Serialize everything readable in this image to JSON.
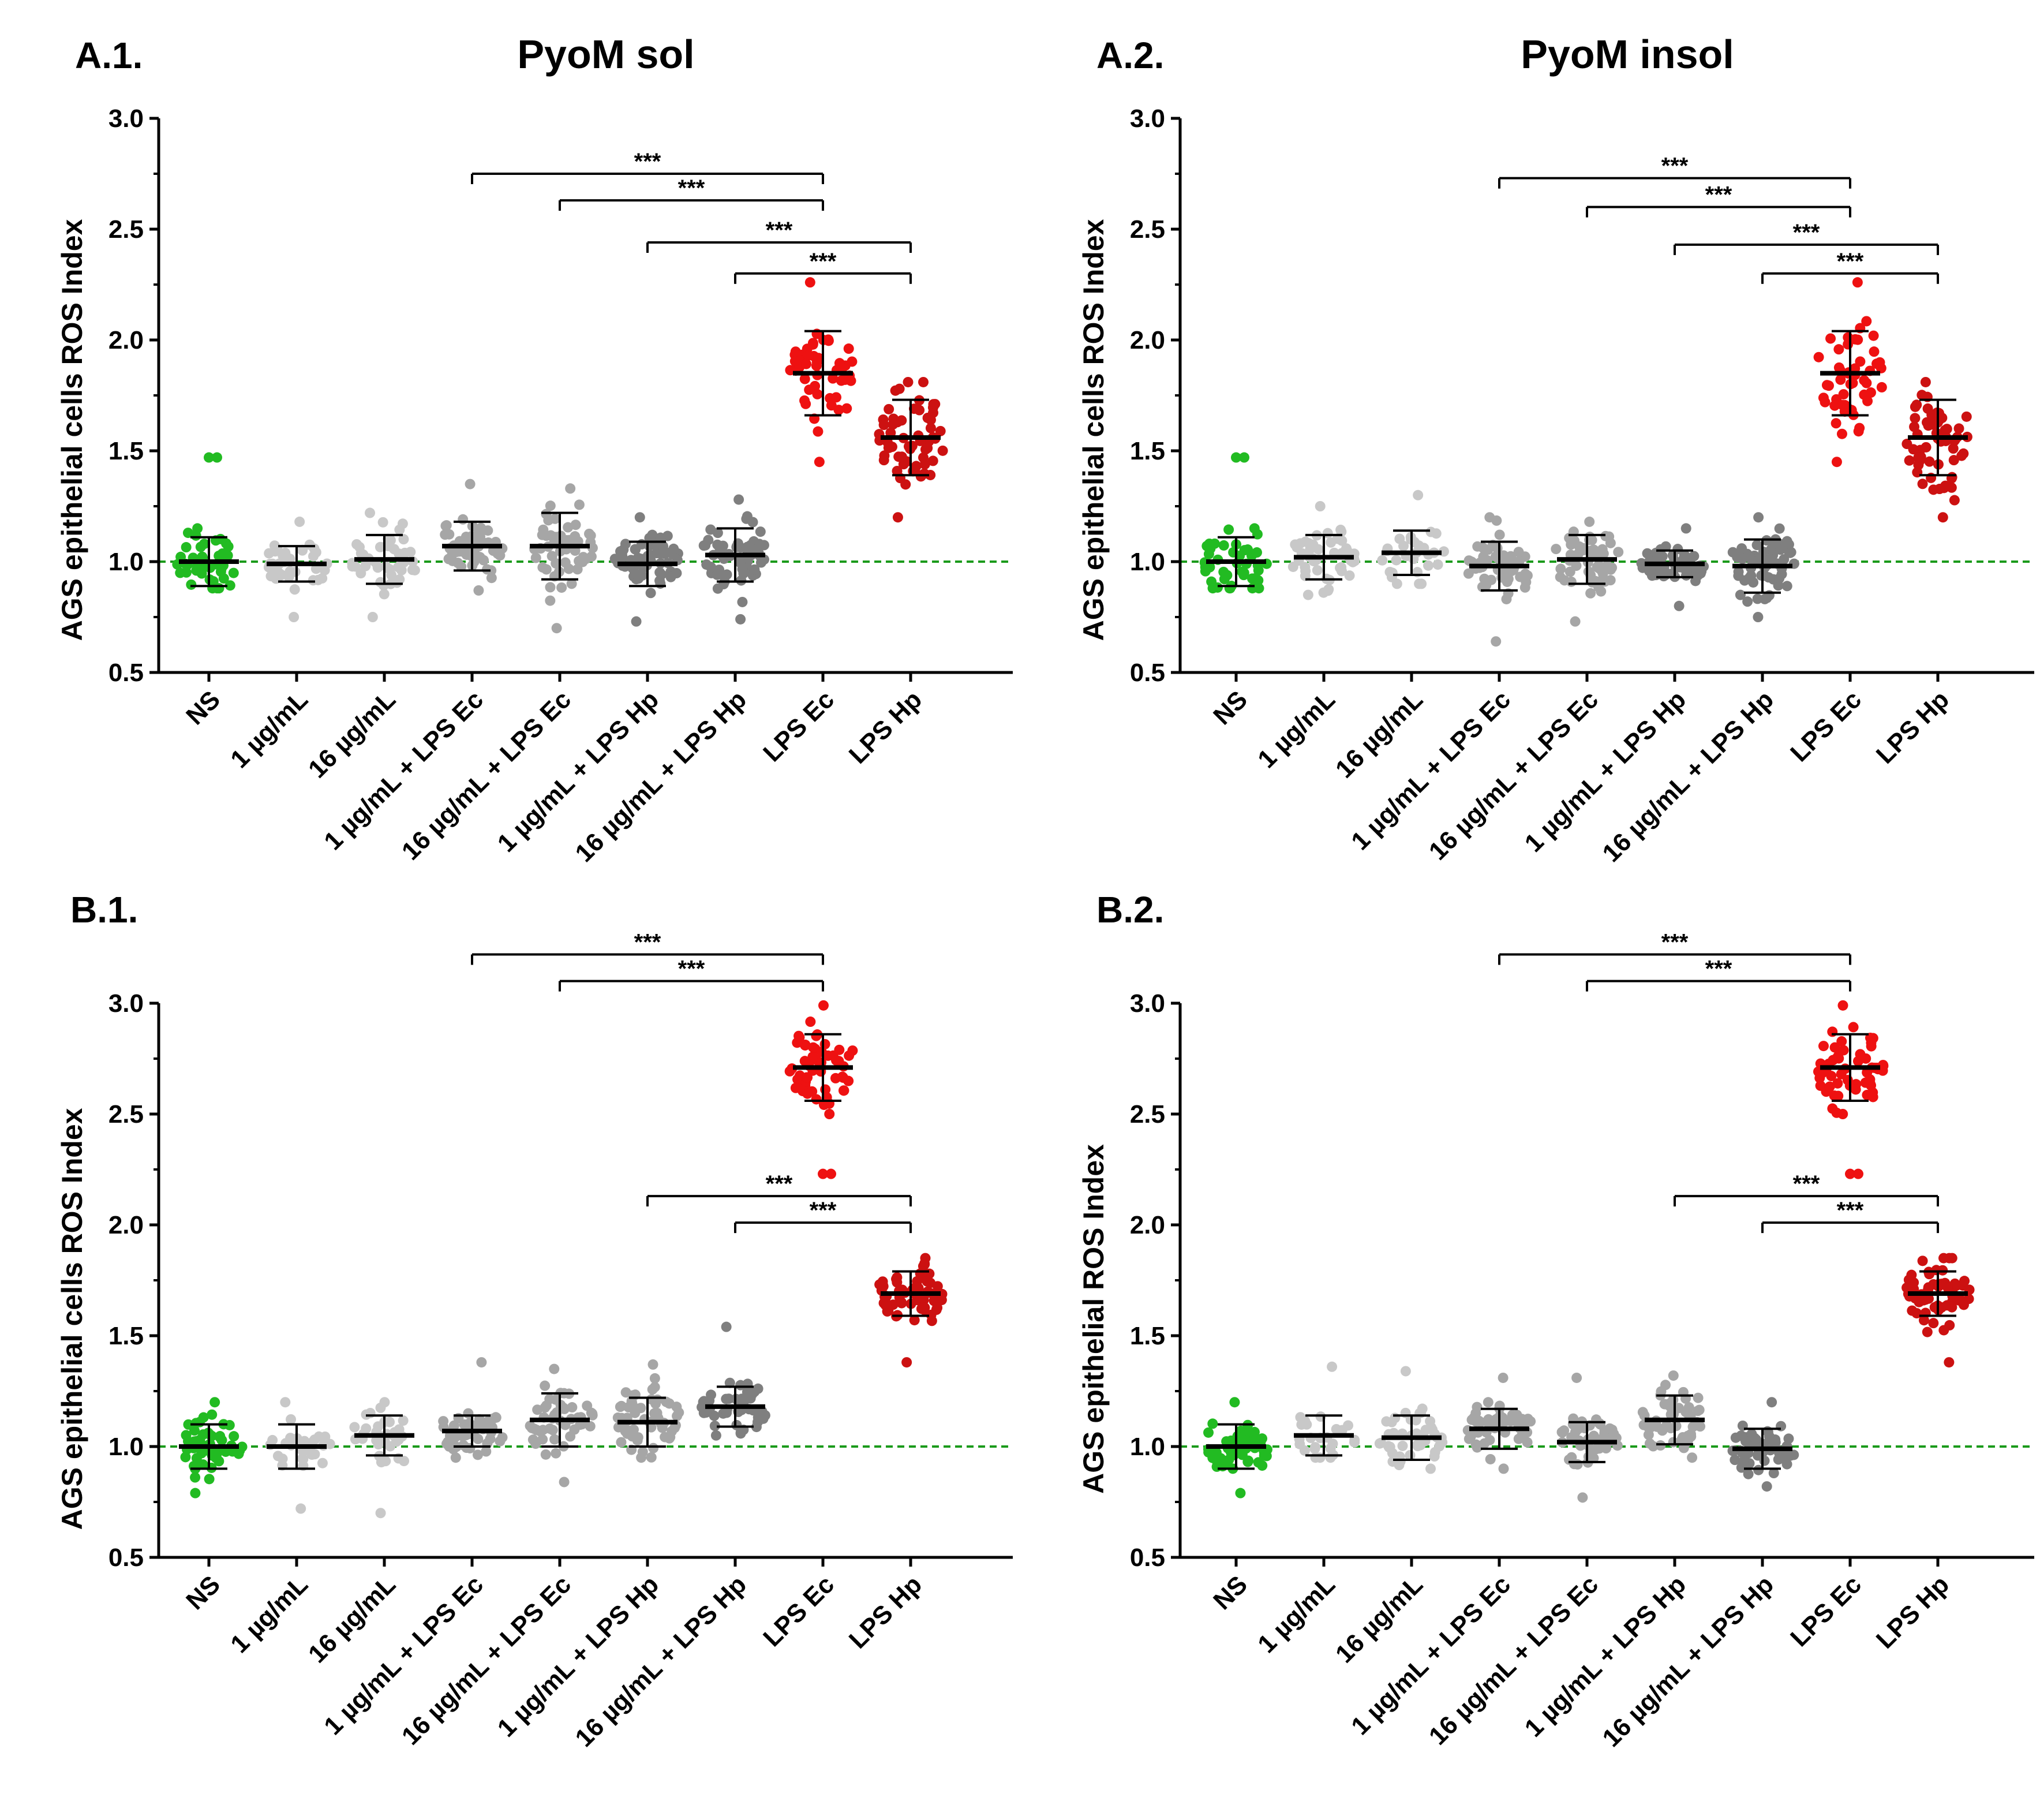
{
  "figure": {
    "background": "#ffffff",
    "colors": {
      "ns": "#22bb22",
      "light": "#c8c8c8",
      "mid": "#a6a6a6",
      "dark": "#7f7f7f",
      "lps_ec": "#ee1111",
      "lps_hp": "#cc1111",
      "baseline": "#1a9a1a",
      "bar": "#000000"
    }
  },
  "chart_data": [
    {
      "id": "A1",
      "panel_label": "A.1.",
      "title": "PyoM sol",
      "type": "scatter",
      "ylabel": "AGS epithelial cells ROS Index",
      "ylim": [
        0.5,
        3.0
      ],
      "yticks": [
        "0.5",
        "1.0",
        "1.5",
        "2.0",
        "2.5",
        "3.0"
      ],
      "baseline": 1.0,
      "categories": [
        "NS",
        "1 µg/mL",
        "16 µg/mL",
        "1 µg/mL + LPS Ec",
        "16 µg/mL + LPS Ec",
        "1 µg/mL + LPS Hp",
        "16 µg/mL + LPS Hp",
        "LPS Ec",
        "LPS Hp"
      ],
      "groups": [
        {
          "mean": 1.0,
          "sd": 0.11,
          "min": 0.88,
          "max": 1.15,
          "n": 45,
          "color": "ns",
          "outlier": 1.47
        },
        {
          "mean": 0.99,
          "sd": 0.08,
          "min": 0.75,
          "max": 1.18,
          "n": 40,
          "color": "light"
        },
        {
          "mean": 1.01,
          "sd": 0.11,
          "min": 0.75,
          "max": 1.22,
          "n": 45,
          "color": "light"
        },
        {
          "mean": 1.07,
          "sd": 0.11,
          "min": 0.87,
          "max": 1.35,
          "n": 50,
          "color": "mid"
        },
        {
          "mean": 1.07,
          "sd": 0.15,
          "min": 0.7,
          "max": 1.33,
          "n": 55,
          "color": "mid"
        },
        {
          "mean": 0.99,
          "sd": 0.1,
          "min": 0.73,
          "max": 1.2,
          "n": 60,
          "color": "dark"
        },
        {
          "mean": 1.03,
          "sd": 0.12,
          "min": 0.74,
          "max": 1.28,
          "n": 60,
          "color": "dark"
        },
        {
          "mean": 1.85,
          "sd": 0.19,
          "min": 1.45,
          "max": 2.26,
          "n": 50,
          "color": "lps_ec"
        },
        {
          "mean": 1.56,
          "sd": 0.17,
          "min": 1.2,
          "max": 1.81,
          "n": 60,
          "color": "lps_hp"
        }
      ],
      "comparisons": [
        {
          "from": 3,
          "to": 7,
          "label": "***",
          "y": 2.75
        },
        {
          "from": 4,
          "to": 7,
          "label": "***",
          "y": 2.63
        },
        {
          "from": 5,
          "to": 8,
          "label": "***",
          "y": 2.44
        },
        {
          "from": 6,
          "to": 8,
          "label": "***",
          "y": 2.3
        }
      ]
    },
    {
      "id": "A2",
      "panel_label": "A.2.",
      "title": "PyoM insol",
      "type": "scatter",
      "ylabel": "AGS epithelial cells ROS Index",
      "ylim": [
        0.5,
        3.0
      ],
      "yticks": [
        "0.5",
        "1.0",
        "1.5",
        "2.0",
        "2.5",
        "3.0"
      ],
      "baseline": 1.0,
      "categories": [
        "NS",
        "1 µg/mL",
        "16 µg/mL",
        "1 µg/mL + LPS Ec",
        "16 µg/mL + LPS Ec",
        "1 µg/mL + LPS Hp",
        "16 µg/mL + LPS Hp",
        "LPS Ec",
        "LPS Hp"
      ],
      "groups": [
        {
          "mean": 1.0,
          "sd": 0.11,
          "min": 0.88,
          "max": 1.15,
          "n": 45,
          "color": "ns",
          "outlier": 1.47
        },
        {
          "mean": 1.02,
          "sd": 0.1,
          "min": 0.85,
          "max": 1.25,
          "n": 50,
          "color": "light"
        },
        {
          "mean": 1.04,
          "sd": 0.1,
          "min": 0.9,
          "max": 1.3,
          "n": 30,
          "color": "light"
        },
        {
          "mean": 0.98,
          "sd": 0.11,
          "min": 0.64,
          "max": 1.2,
          "n": 60,
          "color": "mid"
        },
        {
          "mean": 1.01,
          "sd": 0.11,
          "min": 0.73,
          "max": 1.18,
          "n": 55,
          "color": "mid"
        },
        {
          "mean": 0.99,
          "sd": 0.06,
          "min": 0.8,
          "max": 1.15,
          "n": 60,
          "color": "dark"
        },
        {
          "mean": 0.98,
          "sd": 0.12,
          "min": 0.75,
          "max": 1.2,
          "n": 60,
          "color": "dark"
        },
        {
          "mean": 1.85,
          "sd": 0.19,
          "min": 1.45,
          "max": 2.26,
          "n": 50,
          "color": "lps_ec"
        },
        {
          "mean": 1.56,
          "sd": 0.17,
          "min": 1.2,
          "max": 1.81,
          "n": 60,
          "color": "lps_hp"
        }
      ],
      "comparisons": [
        {
          "from": 3,
          "to": 7,
          "label": "***",
          "y": 2.73
        },
        {
          "from": 4,
          "to": 7,
          "label": "***",
          "y": 2.6
        },
        {
          "from": 5,
          "to": 8,
          "label": "***",
          "y": 2.43
        },
        {
          "from": 6,
          "to": 8,
          "label": "***",
          "y": 2.3
        }
      ]
    },
    {
      "id": "B1",
      "panel_label": "B.1.",
      "title": "",
      "type": "scatter",
      "ylabel": "AGS epithelial cells ROS Index",
      "ylim": [
        0.5,
        3.0
      ],
      "yticks": [
        "0.5",
        "1.0",
        "1.5",
        "2.0",
        "2.5",
        "3.0"
      ],
      "baseline": 1.0,
      "categories": [
        "NS",
        "1 µg/mL",
        "16 µg/mL",
        "1 µg/mL + LPS Ec",
        "16 µg/mL + LPS Ec",
        "1 µg/mL + LPS Hp",
        "16 µg/mL + LPS Hp",
        "LPS Ec",
        "LPS Hp"
      ],
      "groups": [
        {
          "mean": 1.0,
          "sd": 0.1,
          "min": 0.79,
          "max": 1.2,
          "n": 55,
          "color": "ns"
        },
        {
          "mean": 1.0,
          "sd": 0.1,
          "min": 0.72,
          "max": 1.2,
          "n": 30,
          "color": "light"
        },
        {
          "mean": 1.05,
          "sd": 0.09,
          "min": 0.7,
          "max": 1.2,
          "n": 35,
          "color": "light"
        },
        {
          "mean": 1.07,
          "sd": 0.07,
          "min": 0.95,
          "max": 1.38,
          "n": 45,
          "color": "mid"
        },
        {
          "mean": 1.12,
          "sd": 0.12,
          "min": 0.84,
          "max": 1.35,
          "n": 50,
          "color": "mid"
        },
        {
          "mean": 1.11,
          "sd": 0.11,
          "min": 0.95,
          "max": 1.37,
          "n": 60,
          "color": "mid"
        },
        {
          "mean": 1.18,
          "sd": 0.09,
          "min": 1.05,
          "max": 1.54,
          "n": 50,
          "color": "dark"
        },
        {
          "mean": 2.71,
          "sd": 0.15,
          "min": 2.5,
          "max": 2.99,
          "n": 55,
          "color": "lps_ec",
          "outlier": 2.23
        },
        {
          "mean": 1.69,
          "sd": 0.1,
          "min": 1.38,
          "max": 1.85,
          "n": 60,
          "color": "lps_hp"
        }
      ],
      "comparisons": [
        {
          "from": 3,
          "to": 7,
          "label": "***",
          "y": 3.22
        },
        {
          "from": 4,
          "to": 7,
          "label": "***",
          "y": 3.1
        },
        {
          "from": 5,
          "to": 8,
          "label": "***",
          "y": 2.13
        },
        {
          "from": 6,
          "to": 8,
          "label": "***",
          "y": 2.01
        }
      ]
    },
    {
      "id": "B2",
      "panel_label": "B.2.",
      "title": "",
      "type": "scatter",
      "ylabel": "AGS epithelial ROS Index",
      "ylim": [
        0.5,
        3.0
      ],
      "yticks": [
        "0.5",
        "1.0",
        "1.5",
        "2.0",
        "2.5",
        "3.0"
      ],
      "baseline": 1.0,
      "categories": [
        "NS",
        "1 µg/mL",
        "16 µg/mL",
        "1 µg/mL + LPS Ec",
        "16 µg/mL + LPS Ec",
        "1 µg/mL + LPS Hp",
        "16 µg/mL + LPS Hp",
        "LPS Ec",
        "LPS Hp"
      ],
      "groups": [
        {
          "mean": 1.0,
          "sd": 0.1,
          "min": 0.79,
          "max": 1.2,
          "n": 55,
          "color": "ns"
        },
        {
          "mean": 1.05,
          "sd": 0.09,
          "min": 0.95,
          "max": 1.36,
          "n": 25,
          "color": "light"
        },
        {
          "mean": 1.04,
          "sd": 0.1,
          "min": 0.9,
          "max": 1.34,
          "n": 45,
          "color": "light"
        },
        {
          "mean": 1.08,
          "sd": 0.09,
          "min": 0.9,
          "max": 1.31,
          "n": 55,
          "color": "mid"
        },
        {
          "mean": 1.02,
          "sd": 0.09,
          "min": 0.77,
          "max": 1.31,
          "n": 50,
          "color": "mid"
        },
        {
          "mean": 1.12,
          "sd": 0.11,
          "min": 0.95,
          "max": 1.32,
          "n": 50,
          "color": "mid"
        },
        {
          "mean": 0.99,
          "sd": 0.09,
          "min": 0.82,
          "max": 1.2,
          "n": 55,
          "color": "dark"
        },
        {
          "mean": 2.71,
          "sd": 0.15,
          "min": 2.5,
          "max": 2.99,
          "n": 55,
          "color": "lps_ec",
          "outlier": 2.23
        },
        {
          "mean": 1.69,
          "sd": 0.1,
          "min": 1.38,
          "max": 1.85,
          "n": 60,
          "color": "lps_hp"
        }
      ],
      "comparisons": [
        {
          "from": 3,
          "to": 7,
          "label": "***",
          "y": 3.22
        },
        {
          "from": 4,
          "to": 7,
          "label": "***",
          "y": 3.1
        },
        {
          "from": 5,
          "to": 8,
          "label": "***",
          "y": 2.13
        },
        {
          "from": 6,
          "to": 8,
          "label": "***",
          "y": 2.01
        }
      ]
    }
  ]
}
